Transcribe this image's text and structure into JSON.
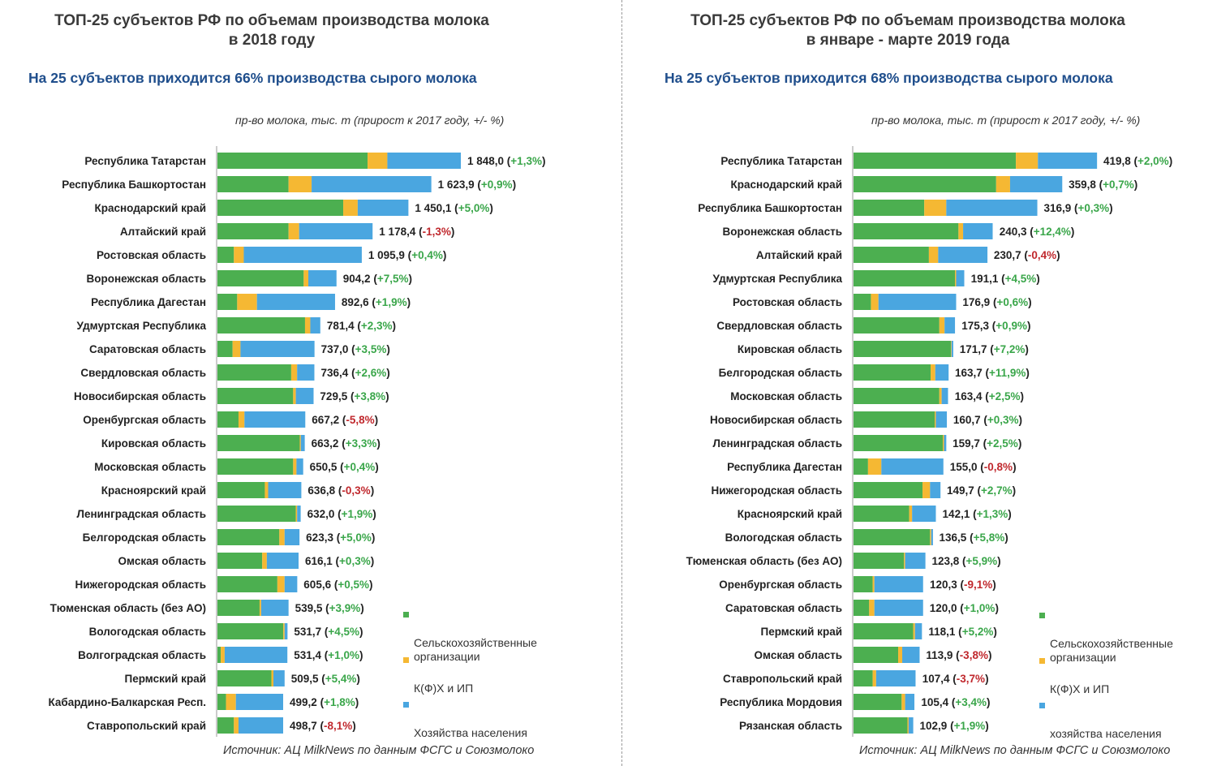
{
  "colors": {
    "agri": "#4caf50",
    "farm": "#f5b833",
    "house": "#4aa6e0",
    "positive": "#3aa64a",
    "negative": "#c0282d"
  },
  "legend": {
    "agri": "Сельскохозяйственные\nорганизации",
    "farm": "К(Ф)Х и ИП",
    "house": "Хозяйства населения",
    "house_right": "хозяйства населения"
  },
  "panels": [
    {
      "title": "ТОП-25 субъектов РФ по объемам производства молока\nв 2018 году",
      "subtitle": "На 25 субъектов приходится 66% производства сырого молока",
      "unit_note": "пр-во молока, тыс. т (прирост к 2017 году, +/- %)",
      "source": "Источник: АЦ MilkNews по данным ФСГС и Союзмолоко",
      "chart_data": {
        "type": "bar",
        "orientation": "horizontal",
        "stacked": true,
        "xlim": [
          0,
          1848.0
        ],
        "series_names": [
          "Сельскохозяйственные организации",
          "К(Ф)Х и ИП",
          "Хозяйства населения"
        ],
        "rows": [
          {
            "name": "Республика Татарстан",
            "total": 1848.0,
            "total_label": "1 848,0",
            "change": "+1,3%",
            "agri": 1140,
            "farm": 150,
            "house": 558
          },
          {
            "name": "Республика Башкортостан",
            "total": 1623.9,
            "total_label": "1 623,9",
            "change": "+0,9%",
            "agri": 540,
            "farm": 175,
            "house": 909
          },
          {
            "name": "Краснодарский край",
            "total": 1450.1,
            "total_label": "1 450,1",
            "change": "+5,0%",
            "agri": 955,
            "farm": 110,
            "house": 385
          },
          {
            "name": "Алтайский край",
            "total": 1178.4,
            "total_label": "1 178,4",
            "change": "-1,3%",
            "agri": 540,
            "farm": 80,
            "house": 558
          },
          {
            "name": "Ростовская область",
            "total": 1095.9,
            "total_label": "1 095,9",
            "change": "+0,4%",
            "agri": 125,
            "farm": 75,
            "house": 896
          },
          {
            "name": "Воронежская область",
            "total": 904.2,
            "total_label": "904,2",
            "change": "+7,5%",
            "agri": 655,
            "farm": 35,
            "house": 214
          },
          {
            "name": "Республика Дагестан",
            "total": 892.6,
            "total_label": "892,6",
            "change": "+1,9%",
            "agri": 150,
            "farm": 150,
            "house": 593
          },
          {
            "name": "Удмуртская Республика",
            "total": 781.4,
            "total_label": "781,4",
            "change": "+2,3%",
            "agri": 665,
            "farm": 40,
            "house": 76
          },
          {
            "name": "Саратовская область",
            "total": 737.0,
            "total_label": "737,0",
            "change": "+3,5%",
            "agri": 115,
            "farm": 60,
            "house": 562
          },
          {
            "name": "Свердловская область",
            "total": 736.4,
            "total_label": "736,4",
            "change": "+2,6%",
            "agri": 560,
            "farm": 45,
            "house": 131
          },
          {
            "name": "Новосибирская область",
            "total": 729.5,
            "total_label": "729,5",
            "change": "+3,8%",
            "agri": 575,
            "farm": 20,
            "house": 135
          },
          {
            "name": "Оренбургская область",
            "total": 667.2,
            "total_label": "667,2",
            "change": "-5,8%",
            "agri": 160,
            "farm": 45,
            "house": 462
          },
          {
            "name": "Кировская область",
            "total": 663.2,
            "total_label": "663,2",
            "change": "+3,3%",
            "agri": 625,
            "farm": 8,
            "house": 30
          },
          {
            "name": "Московская область",
            "total": 650.5,
            "total_label": "650,5",
            "change": "+0,4%",
            "agri": 575,
            "farm": 25,
            "house": 51
          },
          {
            "name": "Красноярский край",
            "total": 636.8,
            "total_label": "636,8",
            "change": "-0,3%",
            "agri": 360,
            "farm": 25,
            "house": 252
          },
          {
            "name": "Ленинградская область",
            "total": 632.0,
            "total_label": "632,0",
            "change": "+1,9%",
            "agri": 595,
            "farm": 10,
            "house": 27
          },
          {
            "name": "Белгородская область",
            "total": 623.3,
            "total_label": "623,3",
            "change": "+5,0%",
            "agri": 470,
            "farm": 40,
            "house": 113
          },
          {
            "name": "Омская область",
            "total": 616.1,
            "total_label": "616,1",
            "change": "+0,3%",
            "agri": 340,
            "farm": 35,
            "house": 241
          },
          {
            "name": "Нижегородская область",
            "total": 605.6,
            "total_label": "605,6",
            "change": "+0,5%",
            "agri": 455,
            "farm": 55,
            "house": 96
          },
          {
            "name": "Тюменская область (без АО)",
            "total": 539.5,
            "total_label": "539,5",
            "change": "+3,9%",
            "agri": 320,
            "farm": 12,
            "house": 208
          },
          {
            "name": "Вологодская область",
            "total": 531.7,
            "total_label": "531,7",
            "change": "+4,5%",
            "agri": 500,
            "farm": 10,
            "house": 22
          },
          {
            "name": "Волгоградская область",
            "total": 531.4,
            "total_label": "531,4",
            "change": "+1,0%",
            "agri": 25,
            "farm": 30,
            "house": 476
          },
          {
            "name": "Пермский край",
            "total": 509.5,
            "total_label": "509,5",
            "change": "+5,4%",
            "agri": 410,
            "farm": 15,
            "house": 85
          },
          {
            "name": "Кабардино-Балкарская Респ.",
            "total": 499.2,
            "total_label": "499,2",
            "change": "+1,8%",
            "agri": 65,
            "farm": 75,
            "house": 359
          },
          {
            "name": "Ставропольский край",
            "total": 498.7,
            "total_label": "498,7",
            "change": "-8,1%",
            "agri": 125,
            "farm": 35,
            "house": 339
          }
        ]
      }
    },
    {
      "title": "ТОП-25 субъектов РФ по объемам производства молока\nв январе - марте 2019 года",
      "subtitle": "На 25 субъектов приходится 68% производства сырого молока",
      "unit_note": "пр-во молока, тыс. т (прирост к 2017 году, +/- %)",
      "source": "Источник: АЦ MilkNews по данным ФСГС и Союзмолоко",
      "chart_data": {
        "type": "bar",
        "orientation": "horizontal",
        "stacked": true,
        "xlim": [
          0,
          419.8
        ],
        "series_names": [
          "Сельскохозяйственные организации",
          "К(Ф)Х и ИП",
          "хозяйства населения"
        ],
        "rows": [
          {
            "name": "Республика Татарстан",
            "total": 419.8,
            "total_label": "419,8",
            "change": "+2,0%",
            "agri": 280,
            "farm": 38,
            "house": 102
          },
          {
            "name": "Краснодарский край",
            "total": 359.8,
            "total_label": "359,8",
            "change": "+0,7%",
            "agri": 246,
            "farm": 24,
            "house": 90
          },
          {
            "name": "Республика Башкортостан",
            "total": 316.9,
            "total_label": "316,9",
            "change": "+0,3%",
            "agri": 122,
            "farm": 38,
            "house": 157
          },
          {
            "name": "Воронежская область",
            "total": 240.3,
            "total_label": "240,3",
            "change": "+12,4%",
            "agri": 181,
            "farm": 8,
            "house": 51
          },
          {
            "name": "Алтайский край",
            "total": 230.7,
            "total_label": "230,7",
            "change": "-0,4%",
            "agri": 130,
            "farm": 16,
            "house": 85
          },
          {
            "name": "Удмуртская Республика",
            "total": 191.1,
            "total_label": "191,1",
            "change": "+4,5%",
            "agri": 175,
            "farm": 2,
            "house": 14
          },
          {
            "name": "Ростовская область",
            "total": 176.9,
            "total_label": "176,9",
            "change": "+0,6%",
            "agri": 30,
            "farm": 13,
            "house": 134
          },
          {
            "name": "Свердловская область",
            "total": 175.3,
            "total_label": "175,3",
            "change": "+0,9%",
            "agri": 148,
            "farm": 9,
            "house": 18
          },
          {
            "name": "Кировская область",
            "total": 171.7,
            "total_label": "171,7",
            "change": "+7,2%",
            "agri": 168,
            "farm": 1,
            "house": 3
          },
          {
            "name": "Белгородская область",
            "total": 163.7,
            "total_label": "163,7",
            "change": "+11,9%",
            "agri": 133,
            "farm": 8,
            "house": 23
          },
          {
            "name": "Московская область",
            "total": 163.4,
            "total_label": "163,4",
            "change": "+2,5%",
            "agri": 148,
            "farm": 4,
            "house": 11
          },
          {
            "name": "Новосибирская область",
            "total": 160.7,
            "total_label": "160,7",
            "change": "+0,3%",
            "agri": 140,
            "farm": 2,
            "house": 19
          },
          {
            "name": "Ленинградская область",
            "total": 159.7,
            "total_label": "159,7",
            "change": "+2,5%",
            "agri": 154,
            "farm": 2,
            "house": 4
          },
          {
            "name": "Республика Дагестан",
            "total": 155.0,
            "total_label": "155,0",
            "change": "-0,8%",
            "agri": 25,
            "farm": 23,
            "house": 107
          },
          {
            "name": "Нижегородская область",
            "total": 149.7,
            "total_label": "149,7",
            "change": "+2,7%",
            "agri": 119,
            "farm": 13,
            "house": 18
          },
          {
            "name": "Красноярский край",
            "total": 142.1,
            "total_label": "142,1",
            "change": "+1,3%",
            "agri": 96,
            "farm": 5,
            "house": 41
          },
          {
            "name": "Вологодская область",
            "total": 136.5,
            "total_label": "136,5",
            "change": "+5,8%",
            "agri": 132,
            "farm": 2,
            "house": 3
          },
          {
            "name": "Тюменская область (без АО)",
            "total": 123.8,
            "total_label": "123,8",
            "change": "+5,9%",
            "agri": 87,
            "farm": 2,
            "house": 35
          },
          {
            "name": "Оренбургская область",
            "total": 120.3,
            "total_label": "120,3",
            "change": "-9,1%",
            "agri": 33,
            "farm": 3,
            "house": 84
          },
          {
            "name": "Саратовская область",
            "total": 120.0,
            "total_label": "120,0",
            "change": "+1,0%",
            "agri": 27,
            "farm": 9,
            "house": 84
          },
          {
            "name": "Пермский край",
            "total": 118.1,
            "total_label": "118,1",
            "change": "+5,2%",
            "agri": 103,
            "farm": 3,
            "house": 12
          },
          {
            "name": "Омская область",
            "total": 113.9,
            "total_label": "113,9",
            "change": "-3,8%",
            "agri": 77,
            "farm": 7,
            "house": 30
          },
          {
            "name": "Ставропольский край",
            "total": 107.4,
            "total_label": "107,4",
            "change": "-3,7%",
            "agri": 33,
            "farm": 6,
            "house": 68
          },
          {
            "name": "Республика Мордовия",
            "total": 105.4,
            "total_label": "105,4",
            "change": "+3,4%",
            "agri": 83,
            "farm": 6,
            "house": 16
          },
          {
            "name": "Рязанская область",
            "total": 102.9,
            "total_label": "102,9",
            "change": "+1,9%",
            "agri": 93,
            "farm": 2,
            "house": 8
          }
        ]
      }
    }
  ]
}
